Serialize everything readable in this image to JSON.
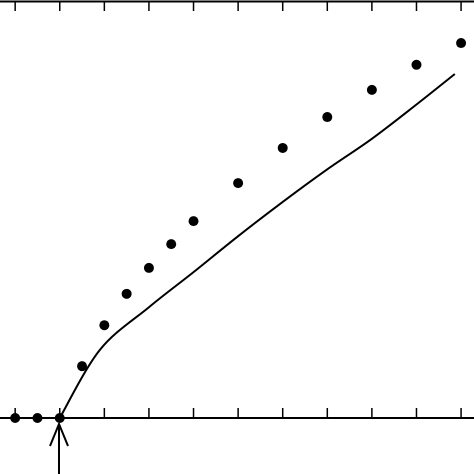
{
  "chart_data": {
    "type": "scatter",
    "xlim": [
      -0.34,
      10.29
    ],
    "ylim": [
      -1.34,
      10
    ],
    "xticks": [
      0,
      1,
      2,
      3,
      4,
      5,
      6,
      7,
      8,
      9,
      10
    ],
    "series": [
      {
        "style": "points",
        "color": "#000000",
        "x": [
          0,
          0.5,
          1,
          1.5,
          2,
          2.5,
          3,
          3.5,
          4,
          5,
          6,
          7,
          8,
          9,
          10
        ],
        "y": [
          0,
          0,
          0,
          1.24,
          2.22,
          2.97,
          3.59,
          4.16,
          4.71,
          5.62,
          6.46,
          7.2,
          7.85,
          8.45,
          8.97
        ]
      },
      {
        "style": "line",
        "color": "#000000",
        "x": [
          1,
          1.9,
          3,
          4,
          5,
          6,
          7,
          8,
          9,
          9.86
        ],
        "y": [
          0,
          1.63,
          2.65,
          3.49,
          4.35,
          5.17,
          5.95,
          6.68,
          7.5,
          8.23
        ]
      }
    ]
  }
}
